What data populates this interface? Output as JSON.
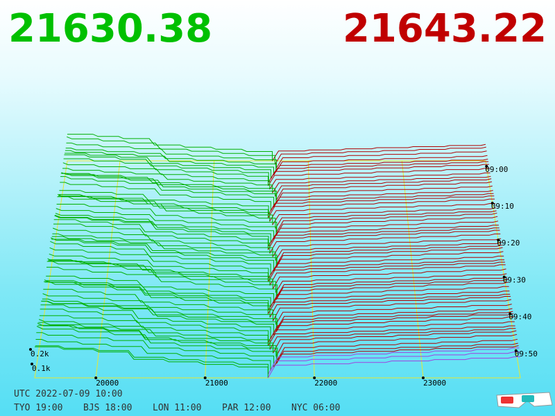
{
  "header": {
    "bid": "21630.38",
    "ask": "21643.22"
  },
  "price_axis": {
    "ticks": [
      "20000",
      "21000",
      "22000",
      "23000"
    ]
  },
  "depth_axis": {
    "ticks": [
      "0.2k",
      "0.1k"
    ]
  },
  "time_axis": {
    "ticks": [
      "09:00",
      "09:10",
      "09:20",
      "09:30",
      "09:40",
      "09:50"
    ]
  },
  "footer": {
    "utc": "UTC 2022-07-09 10:00",
    "clocks": [
      "TYO 19:00",
      "BJS 18:00",
      "LON 11:00",
      "PAR 12:00",
      "NYC 06:00"
    ]
  }
}
